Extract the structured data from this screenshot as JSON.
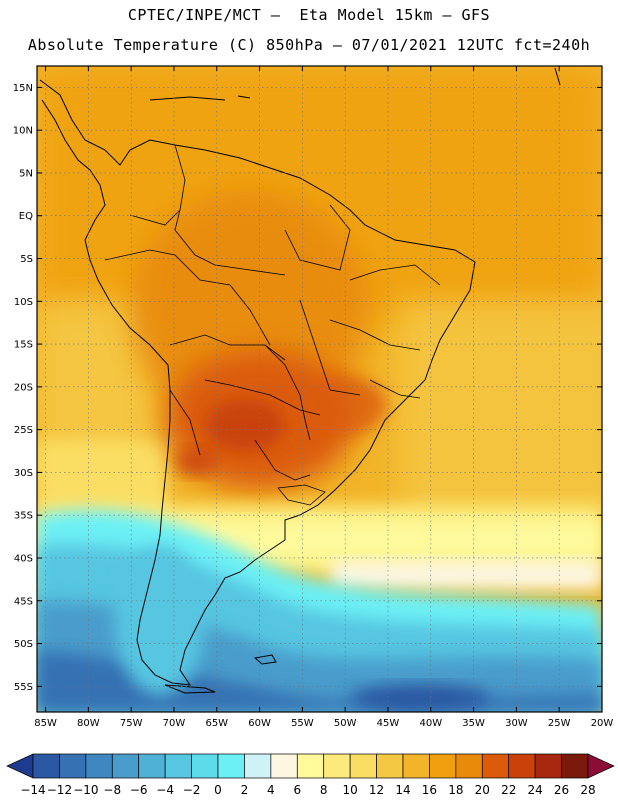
{
  "header": {
    "line1": "CPTEC/INPE/MCT –  Eta Model 15km – GFS",
    "line2": "Absolute Temperature (C) 850hPa – 07/01/2021 12UTC fct=240h"
  },
  "map": {
    "lat_labels": [
      "15N",
      "10N",
      "5N",
      "EQ",
      "5S",
      "10S",
      "15S",
      "20S",
      "25S",
      "30S",
      "35S",
      "40S",
      "45S",
      "50S",
      "55S"
    ],
    "lon_labels": [
      "85W",
      "80W",
      "75W",
      "70W",
      "65W",
      "60W",
      "55W",
      "50W",
      "45W",
      "40W",
      "35W",
      "30W",
      "25W",
      "20W"
    ],
    "lat_range": [
      17.5,
      -58
    ],
    "lon_range": [
      -86,
      -20
    ],
    "temperature_zones": [
      {
        "zone": "tropics",
        "value_c": 18
      },
      {
        "zone": "central-brazil",
        "value_c": 20
      },
      {
        "zone": "paraguay-hotspot",
        "value_c": 24
      },
      {
        "zone": "south-atlantic-high",
        "value_c": 10
      },
      {
        "zone": "patagonia",
        "value_c": 2
      },
      {
        "zone": "southern-ocean",
        "value_c": -8
      }
    ]
  },
  "colorbar": {
    "labels": [
      "-14",
      "-12",
      "-10",
      "-8",
      "-6",
      "-4",
      "-2",
      "0",
      "2",
      "4",
      "6",
      "8",
      "10",
      "12",
      "14",
      "16",
      "18",
      "20",
      "22",
      "24",
      "26",
      "28"
    ],
    "colors": [
      "#1f3b8f",
      "#2a58a3",
      "#3671b3",
      "#3f87c0",
      "#4a9ccb",
      "#4fb1d6",
      "#56c6e1",
      "#5ddbeb",
      "#6cf0f5",
      "#cff2f8",
      "#fdf7e2",
      "#fefa9c",
      "#fceb7c",
      "#fade63",
      "#f5c844",
      "#f2b529",
      "#f0a00f",
      "#e88a0a",
      "#db5b0b",
      "#c94209",
      "#a8280f",
      "#7a1a0c",
      "#8b0d36"
    ]
  }
}
